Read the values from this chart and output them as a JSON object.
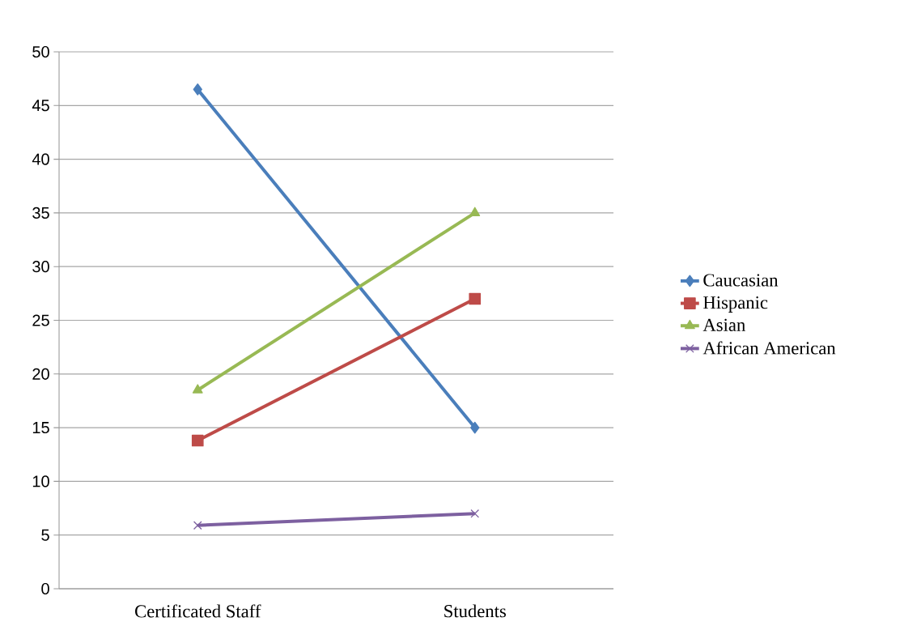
{
  "chart_data": {
    "type": "line",
    "categories": [
      "Certificated Staff",
      "Students"
    ],
    "series": [
      {
        "name": "Caucasian",
        "color": "#4a7ebb",
        "marker": "diamond",
        "values": [
          46.5,
          15
        ]
      },
      {
        "name": "Hispanic",
        "color": "#be4b48",
        "marker": "square",
        "values": [
          13.8,
          27
        ]
      },
      {
        "name": "Asian",
        "color": "#98b954",
        "marker": "triangle",
        "values": [
          18.5,
          35
        ]
      },
      {
        "name": "African American",
        "color": "#7d60a0",
        "marker": "cross",
        "values": [
          5.9,
          7
        ]
      }
    ],
    "ylim": [
      0,
      50
    ],
    "yticks": [
      0,
      5,
      10,
      15,
      20,
      25,
      30,
      35,
      40,
      45,
      50
    ],
    "grid": "y",
    "legend": "right",
    "line_style": "solid"
  }
}
